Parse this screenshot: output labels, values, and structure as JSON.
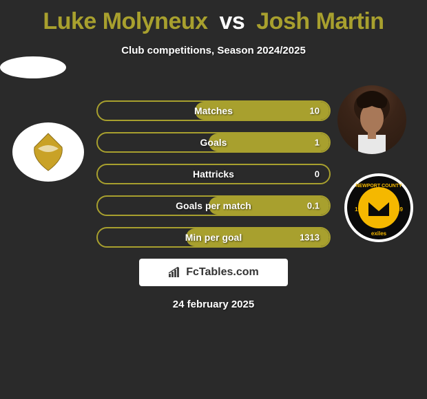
{
  "title": {
    "player1": "Luke Molyneux",
    "vs": "vs",
    "player2": "Josh Martin",
    "player1_color": "#a8a02e",
    "player2_color": "#a8a02e"
  },
  "subtitle": "Club competitions, Season 2024/2025",
  "accent_color": "#a8a02e",
  "stats": [
    {
      "label": "Matches",
      "value": "10",
      "fill_pct": 58
    },
    {
      "label": "Goals",
      "value": "1",
      "fill_pct": 52
    },
    {
      "label": "Hattricks",
      "value": "0",
      "fill_pct": 0
    },
    {
      "label": "Goals per match",
      "value": "0.1",
      "fill_pct": 52
    },
    {
      "label": "Min per goal",
      "value": "1313",
      "fill_pct": 62
    }
  ],
  "brand": "FcTables.com",
  "date": "24 february 2025",
  "team1_badge_bg": "#ffffff",
  "team1_badge_accent": "#c9a227",
  "team2_badge_bg": "#0a0a0a",
  "team2_badge_accent": "#f5b800",
  "team2_badge_text_top": "NEWPORT COUNTY",
  "team2_badge_text_bottom": "exiles"
}
